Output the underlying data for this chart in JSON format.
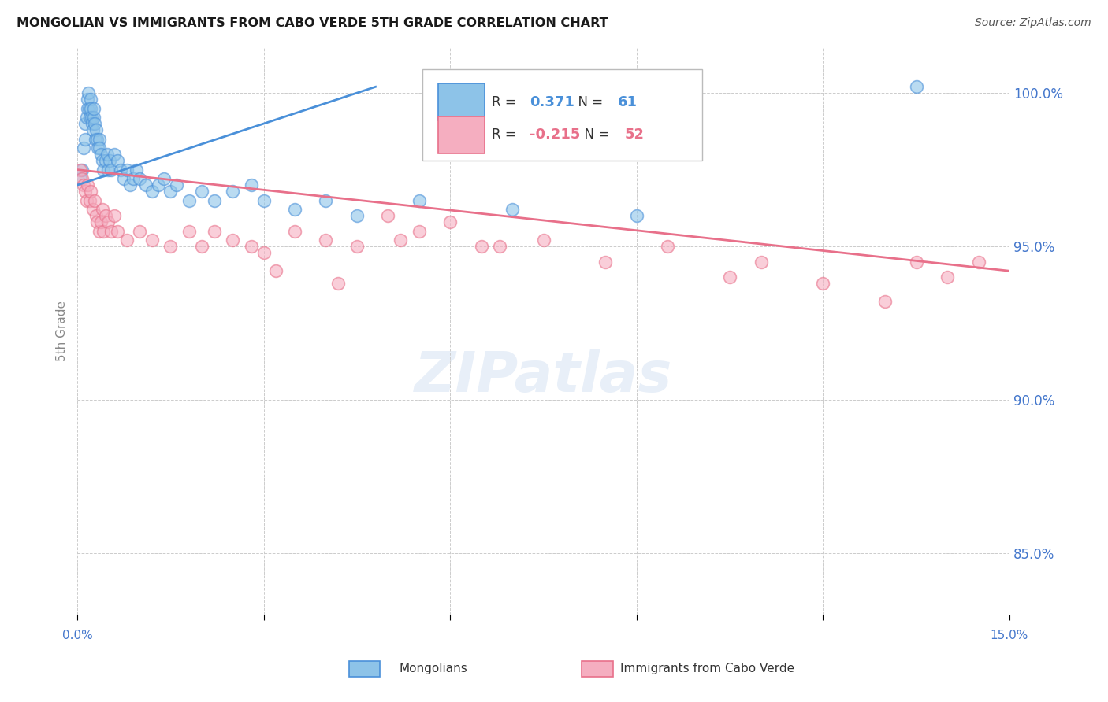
{
  "title": "MONGOLIAN VS IMMIGRANTS FROM CABO VERDE 5TH GRADE CORRELATION CHART",
  "source": "Source: ZipAtlas.com",
  "ylabel": "5th Grade",
  "watermark": "ZIPatlas",
  "blue_R": 0.371,
  "blue_N": 61,
  "pink_R": -0.215,
  "pink_N": 52,
  "blue_label": "Mongolians",
  "pink_label": "Immigrants from Cabo Verde",
  "xmin": 0.0,
  "xmax": 15.0,
  "ymin": 83.0,
  "ymax": 101.5,
  "ytick_vals": [
    85.0,
    90.0,
    95.0,
    100.0
  ],
  "ytick_labels": [
    "85.0%",
    "90.0%",
    "95.0%",
    "100.0%"
  ],
  "blue_color": "#8dc3e8",
  "pink_color": "#f5aec0",
  "blue_line_color": "#4a90d9",
  "pink_line_color": "#e8708a",
  "title_color": "#1a1a1a",
  "source_color": "#555555",
  "axis_label_color": "#4477cc",
  "background_color": "#ffffff",
  "grid_color": "#cccccc",
  "blue_x": [
    0.05,
    0.08,
    0.1,
    0.12,
    0.13,
    0.15,
    0.16,
    0.17,
    0.18,
    0.19,
    0.2,
    0.21,
    0.22,
    0.23,
    0.24,
    0.25,
    0.26,
    0.27,
    0.28,
    0.29,
    0.3,
    0.32,
    0.33,
    0.35,
    0.36,
    0.38,
    0.4,
    0.42,
    0.45,
    0.48,
    0.5,
    0.52,
    0.55,
    0.6,
    0.65,
    0.7,
    0.75,
    0.8,
    0.85,
    0.9,
    0.95,
    1.0,
    1.1,
    1.2,
    1.3,
    1.4,
    1.5,
    1.6,
    1.8,
    2.0,
    2.2,
    2.5,
    2.8,
    3.0,
    3.5,
    4.0,
    4.5,
    5.5,
    7.0,
    9.0,
    13.5
  ],
  "blue_y": [
    97.2,
    97.5,
    98.2,
    98.5,
    99.0,
    99.2,
    99.5,
    99.8,
    100.0,
    99.5,
    99.2,
    99.8,
    99.5,
    99.2,
    99.0,
    98.8,
    99.2,
    99.5,
    99.0,
    98.5,
    98.8,
    98.5,
    98.2,
    98.5,
    98.2,
    98.0,
    97.8,
    97.5,
    97.8,
    98.0,
    97.5,
    97.8,
    97.5,
    98.0,
    97.8,
    97.5,
    97.2,
    97.5,
    97.0,
    97.2,
    97.5,
    97.2,
    97.0,
    96.8,
    97.0,
    97.2,
    96.8,
    97.0,
    96.5,
    96.8,
    96.5,
    96.8,
    97.0,
    96.5,
    96.2,
    96.5,
    96.0,
    96.5,
    96.2,
    96.0,
    100.2
  ],
  "pink_x": [
    0.05,
    0.08,
    0.1,
    0.12,
    0.15,
    0.17,
    0.2,
    0.22,
    0.25,
    0.28,
    0.3,
    0.32,
    0.35,
    0.38,
    0.4,
    0.42,
    0.45,
    0.5,
    0.55,
    0.6,
    0.65,
    0.8,
    1.0,
    1.2,
    1.5,
    1.8,
    2.0,
    2.2,
    2.5,
    2.8,
    3.0,
    3.5,
    4.0,
    4.5,
    5.0,
    5.5,
    6.0,
    6.5,
    7.5,
    8.5,
    9.5,
    10.5,
    11.0,
    12.0,
    13.0,
    13.5,
    14.0,
    14.5,
    3.2,
    4.2,
    5.2,
    6.8
  ],
  "pink_y": [
    97.5,
    97.2,
    97.0,
    96.8,
    96.5,
    97.0,
    96.5,
    96.8,
    96.2,
    96.5,
    96.0,
    95.8,
    95.5,
    95.8,
    96.2,
    95.5,
    96.0,
    95.8,
    95.5,
    96.0,
    95.5,
    95.2,
    95.5,
    95.2,
    95.0,
    95.5,
    95.0,
    95.5,
    95.2,
    95.0,
    94.8,
    95.5,
    95.2,
    95.0,
    96.0,
    95.5,
    95.8,
    95.0,
    95.2,
    94.5,
    95.0,
    94.0,
    94.5,
    93.8,
    93.2,
    94.5,
    94.0,
    94.5,
    94.2,
    93.8,
    95.2,
    95.0
  ],
  "blue_line_x": [
    0.0,
    4.8
  ],
  "blue_line_y": [
    97.0,
    100.2
  ],
  "pink_line_x": [
    0.0,
    15.0
  ],
  "pink_line_y": [
    97.5,
    94.2
  ]
}
